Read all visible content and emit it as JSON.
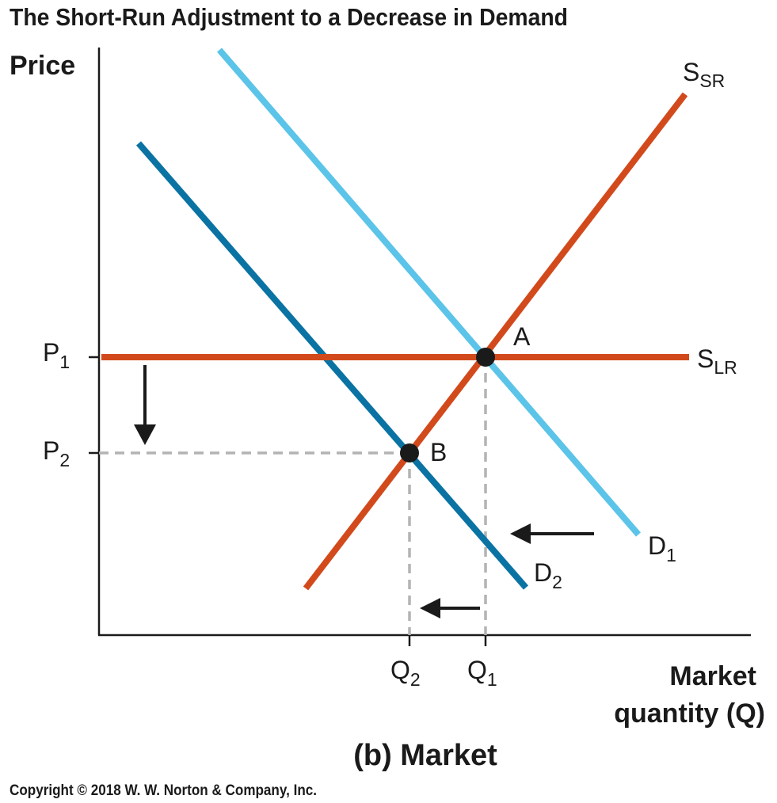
{
  "title": "The Short-Run Adjustment to a Decrease in Demand",
  "y_axis_label": "Price",
  "x_axis_label_line1": "Market",
  "x_axis_label_line2": "quantity (Q)",
  "panel_caption": "(b) Market",
  "copyright": "Copyright © 2018 W. W. Norton & Company, Inc.",
  "price_ticks": [
    {
      "main": "P",
      "sub": "1"
    },
    {
      "main": "P",
      "sub": "2"
    }
  ],
  "quantity_ticks": [
    {
      "main": "Q",
      "sub": "2"
    },
    {
      "main": "Q",
      "sub": "1"
    }
  ],
  "curves": {
    "s_sr": {
      "main": "S",
      "sub": "SR",
      "color": "#d24a1c"
    },
    "s_lr": {
      "main": "S",
      "sub": "LR",
      "color": "#d24a1c"
    },
    "d1": {
      "main": "D",
      "sub": "1",
      "color": "#5bc4e8"
    },
    "d2": {
      "main": "D",
      "sub": "2",
      "color": "#0a73a3"
    }
  },
  "points": {
    "a": "A",
    "b": "B"
  },
  "guide_color": "#b3b3b3",
  "arrow_color": "#1a1a1a"
}
